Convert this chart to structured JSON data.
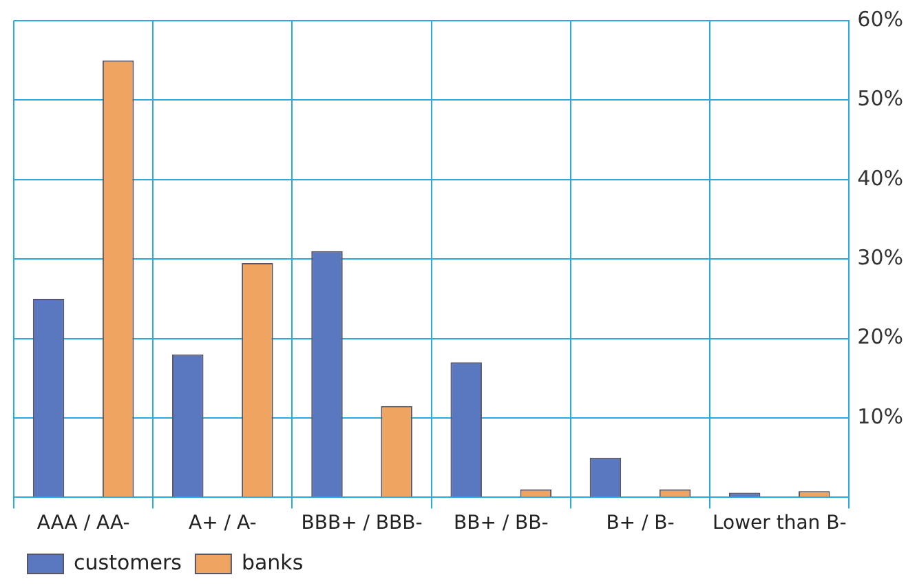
{
  "chart_data": {
    "type": "bar",
    "categories": [
      "AAA / AA-",
      "A+ / A-",
      "BBB+ / BBB-",
      "BB+ / BB-",
      "B+ / B-",
      "Lower than B-"
    ],
    "series": [
      {
        "name": "customers",
        "color": "#5a78c0",
        "values": [
          25,
          18,
          31,
          17,
          5,
          0.6
        ]
      },
      {
        "name": "banks",
        "color": "#f0a462",
        "values": [
          55,
          29.5,
          11.5,
          1,
          1,
          0.8
        ]
      }
    ],
    "ylim": [
      0,
      60
    ],
    "yticks": [
      {
        "value": 0,
        "label": null
      },
      {
        "value": 10,
        "label": "10%"
      },
      {
        "value": 20,
        "label": "20%"
      },
      {
        "value": 30,
        "label": "30%"
      },
      {
        "value": 40,
        "label": "40%"
      },
      {
        "value": 50,
        "label": "50%"
      },
      {
        "value": 60,
        "label": "60%"
      }
    ],
    "grid": true,
    "legend": "bottom left"
  }
}
